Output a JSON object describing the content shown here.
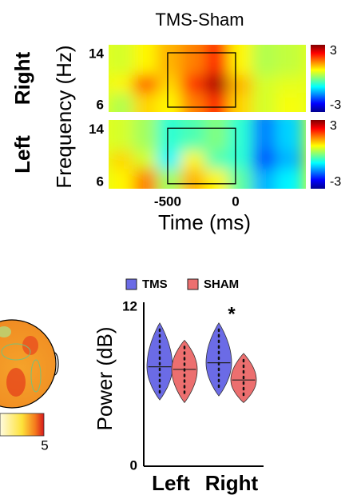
{
  "chart_data": [
    {
      "type": "heatmap",
      "title": "TMS-Sham",
      "x_label": "Time (ms)",
      "y_label": "Frequency (Hz)",
      "x": [
        -825,
        -650,
        -475,
        -300,
        -125,
        50,
        225,
        400
      ],
      "y": [
        7,
        10,
        13
      ],
      "xlim": [
        -935,
        518
      ],
      "ylim": [
        5,
        15.5
      ],
      "xticks": [
        -500,
        0
      ],
      "yticks": [
        6,
        14
      ],
      "clim": [
        -3,
        3
      ],
      "cticks": [
        -3,
        3
      ],
      "colormap": "jet",
      "panels": [
        {
          "name": "Right",
          "z": [
            [
              0.3,
              1.0,
              0.8,
              1.5,
              2.0,
              1.0,
              0.5,
              0.7
            ],
            [
              0.8,
              1.8,
              1.0,
              2.0,
              2.8,
              1.2,
              0.5,
              0.6
            ],
            [
              0.5,
              0.8,
              1.2,
              1.5,
              2.0,
              0.8,
              0.3,
              0.4
            ]
          ]
        },
        {
          "name": "Left",
          "z": [
            [
              0.8,
              1.5,
              0.2,
              1.2,
              0.8,
              -0.2,
              -1.2,
              -0.8
            ],
            [
              1.0,
              0.5,
              -0.8,
              0.8,
              -0.3,
              -0.5,
              -1.8,
              -1.2
            ],
            [
              0.5,
              0.2,
              -0.5,
              -0.3,
              0.0,
              -0.5,
              -1.5,
              -1.0
            ]
          ]
        }
      ]
    },
    {
      "type": "topomap",
      "cticks": [
        5
      ]
    },
    {
      "type": "violin",
      "y_label": "Power (dB)",
      "categories": [
        "Left",
        "Right"
      ],
      "ylim": [
        0,
        12
      ],
      "yticks": [
        0,
        12
      ],
      "annotation": "*",
      "series": [
        {
          "name": "TMS",
          "color": "#6b6be6",
          "values": [
            7.5,
            7.8
          ],
          "min": [
            5.0,
            5.3
          ],
          "max": [
            10.8,
            10.8
          ]
        },
        {
          "name": "SHAM",
          "color": "#ec6f6f",
          "values": [
            7.3,
            6.5
          ],
          "min": [
            4.8,
            4.8
          ],
          "max": [
            9.5,
            8.5
          ]
        }
      ]
    }
  ]
}
